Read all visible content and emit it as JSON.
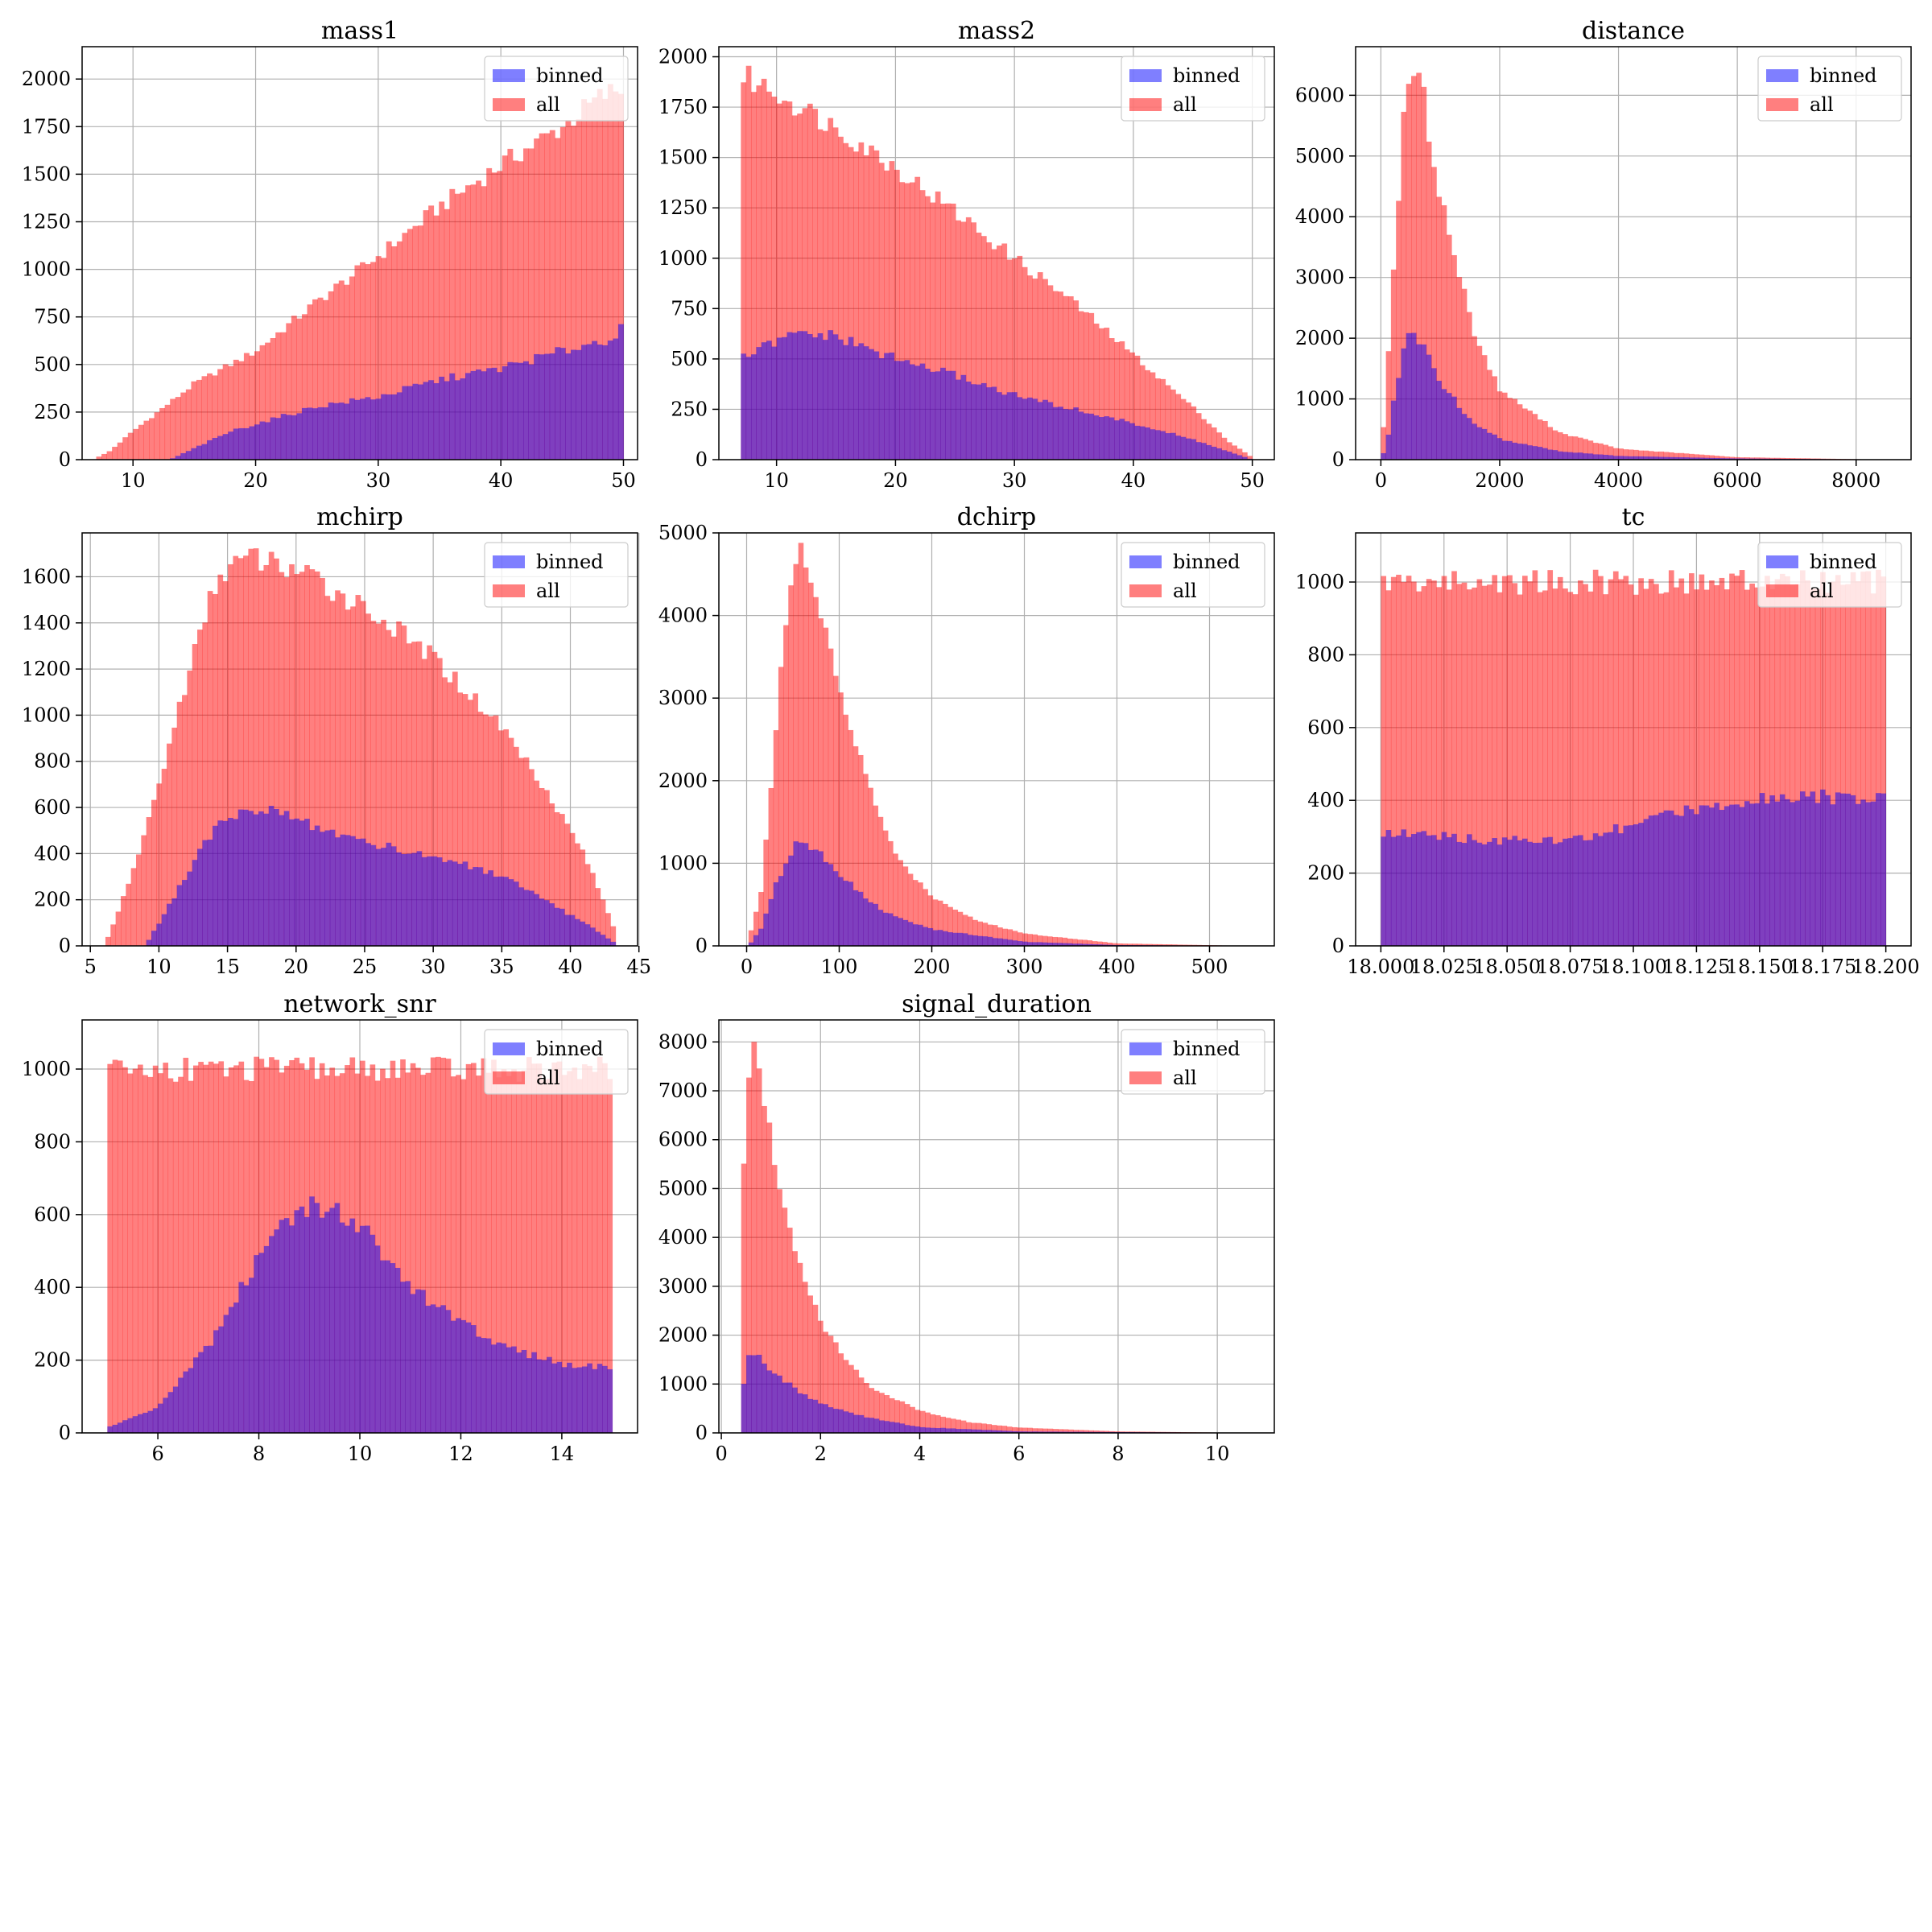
{
  "figure": {
    "colors": {
      "binned": "#0000ff",
      "all": "#ff0000",
      "overlap": "#c03b7c"
    },
    "alpha": 0.5
  },
  "chart_data": [
    {
      "type": "bar",
      "title": "mass1",
      "xlim": [
        5.85,
        51.15
      ],
      "ylim": [
        0,
        2170
      ],
      "xticks": [
        10,
        20,
        30,
        40,
        50
      ],
      "yticks": [
        0,
        250,
        500,
        750,
        1000,
        1250,
        1500,
        1750,
        2000
      ],
      "grid": true,
      "legend_position": "top-right",
      "x_range": [
        7,
        50
      ],
      "series": [
        {
          "name": "binned",
          "profile": [
            [
              7,
              0
            ],
            [
              13,
              0
            ],
            [
              18,
              150
            ],
            [
              25,
              280
            ],
            [
              30,
              330
            ],
            [
              35,
              420
            ],
            [
              40,
              480
            ],
            [
              45,
              570
            ],
            [
              49,
              640
            ],
            [
              50,
              690
            ]
          ]
        },
        {
          "name": "all",
          "profile": [
            [
              7,
              10
            ],
            [
              8,
              40
            ],
            [
              10,
              150
            ],
            [
              15,
              400
            ],
            [
              20,
              570
            ],
            [
              25,
              830
            ],
            [
              30,
              1070
            ],
            [
              35,
              1330
            ],
            [
              40,
              1550
            ],
            [
              45,
              1750
            ],
            [
              48,
              1900
            ],
            [
              50,
              1960
            ]
          ]
        }
      ]
    },
    {
      "type": "bar",
      "title": "mass2",
      "xlim": [
        5.15,
        51.85
      ],
      "ylim": [
        0,
        2050
      ],
      "xticks": [
        10,
        20,
        30,
        40,
        50
      ],
      "yticks": [
        0,
        250,
        500,
        750,
        1000,
        1250,
        1500,
        1750,
        2000
      ],
      "grid": true,
      "legend_position": "top-right",
      "x_range": [
        7,
        50
      ],
      "series": [
        {
          "name": "binned",
          "profile": [
            [
              7,
              500
            ],
            [
              9,
              560
            ],
            [
              12,
              630
            ],
            [
              15,
              610
            ],
            [
              20,
              500
            ],
            [
              25,
              420
            ],
            [
              30,
              320
            ],
            [
              35,
              250
            ],
            [
              40,
              180
            ],
            [
              45,
              100
            ],
            [
              48,
              40
            ],
            [
              50,
              0
            ]
          ]
        },
        {
          "name": "all",
          "profile": [
            [
              7,
              1910
            ],
            [
              10,
              1820
            ],
            [
              15,
              1650
            ],
            [
              20,
              1450
            ],
            [
              25,
              1230
            ],
            [
              30,
              1000
            ],
            [
              35,
              780
            ],
            [
              40,
              520
            ],
            [
              45,
              260
            ],
            [
              48,
              90
            ],
            [
              50,
              10
            ]
          ]
        }
      ]
    },
    {
      "type": "bar",
      "title": "distance",
      "xlim": [
        -425,
        8925
      ],
      "ylim": [
        0,
        6800
      ],
      "xticks": [
        0,
        2000,
        4000,
        6000,
        8000
      ],
      "yticks": [
        0,
        1000,
        2000,
        3000,
        4000,
        5000,
        6000
      ],
      "grid": true,
      "legend_position": "top-right",
      "x_range": [
        0,
        8500
      ],
      "series": [
        {
          "name": "binned",
          "profile": [
            [
              0,
              0
            ],
            [
              100,
              250
            ],
            [
              200,
              900
            ],
            [
              400,
              1900
            ],
            [
              500,
              2050
            ],
            [
              700,
              1850
            ],
            [
              1000,
              1300
            ],
            [
              1500,
              650
            ],
            [
              2000,
              340
            ],
            [
              3000,
              140
            ],
            [
              4000,
              60
            ],
            [
              6000,
              20
            ],
            [
              8500,
              0
            ]
          ]
        },
        {
          "name": "all",
          "profile": [
            [
              0,
              0
            ],
            [
              100,
              1300
            ],
            [
              200,
              3000
            ],
            [
              400,
              5800
            ],
            [
              550,
              6450
            ],
            [
              700,
              6100
            ],
            [
              900,
              4800
            ],
            [
              1200,
              3500
            ],
            [
              1600,
              2000
            ],
            [
              2000,
              1150
            ],
            [
              3000,
              450
            ],
            [
              4000,
              180
            ],
            [
              6000,
              40
            ],
            [
              8500,
              0
            ]
          ]
        }
      ]
    },
    {
      "type": "bar",
      "title": "mchirp",
      "xlim": [
        4.4,
        44.9
      ],
      "ylim": [
        0,
        1790
      ],
      "xticks": [
        5,
        10,
        15,
        20,
        25,
        30,
        35,
        40,
        45
      ],
      "yticks": [
        0,
        200,
        400,
        600,
        800,
        1000,
        1200,
        1400,
        1600
      ],
      "grid": true,
      "legend_position": "top-right",
      "x_range": [
        6.1,
        43.3
      ],
      "series": [
        {
          "name": "binned",
          "profile": [
            [
              6.1,
              0
            ],
            [
              9,
              0
            ],
            [
              11,
              200
            ],
            [
              13,
              420
            ],
            [
              15,
              560
            ],
            [
              17,
              600
            ],
            [
              20,
              550
            ],
            [
              25,
              450
            ],
            [
              30,
              390
            ],
            [
              35,
              300
            ],
            [
              38,
              200
            ],
            [
              41,
              100
            ],
            [
              43.3,
              10
            ]
          ]
        },
        {
          "name": "all",
          "profile": [
            [
              6.1,
              10
            ],
            [
              8,
              300
            ],
            [
              10,
              700
            ],
            [
              12,
              1150
            ],
            [
              14,
              1550
            ],
            [
              15,
              1650
            ],
            [
              17,
              1680
            ],
            [
              20,
              1630
            ],
            [
              25,
              1470
            ],
            [
              30,
              1250
            ],
            [
              35,
              950
            ],
            [
              38,
              700
            ],
            [
              41,
              400
            ],
            [
              43.3,
              60
            ]
          ]
        }
      ]
    },
    {
      "type": "bar",
      "title": "dchirp",
      "xlim": [
        -30,
        570
      ],
      "ylim": [
        0,
        5000
      ],
      "xticks": [
        0,
        100,
        200,
        300,
        400,
        500
      ],
      "yticks": [
        0,
        1000,
        2000,
        3000,
        4000,
        5000
      ],
      "grid": true,
      "legend_position": "top-right",
      "x_range": [
        2,
        540
      ],
      "series": [
        {
          "name": "binned",
          "profile": [
            [
              2,
              0
            ],
            [
              15,
              200
            ],
            [
              30,
              700
            ],
            [
              50,
              1200
            ],
            [
              60,
              1300
            ],
            [
              80,
              1100
            ],
            [
              100,
              850
            ],
            [
              150,
              400
            ],
            [
              200,
              200
            ],
            [
              300,
              50
            ],
            [
              400,
              10
            ],
            [
              540,
              0
            ]
          ]
        },
        {
          "name": "all",
          "profile": [
            [
              2,
              80
            ],
            [
              15,
              600
            ],
            [
              25,
              1800
            ],
            [
              40,
              3800
            ],
            [
              50,
              4600
            ],
            [
              60,
              4750
            ],
            [
              75,
              4200
            ],
            [
              100,
              3100
            ],
            [
              130,
              2000
            ],
            [
              160,
              1100
            ],
            [
              200,
              600
            ],
            [
              250,
              300
            ],
            [
              300,
              150
            ],
            [
              400,
              30
            ],
            [
              540,
              0
            ]
          ]
        }
      ]
    },
    {
      "type": "bar",
      "title": "tc",
      "xlim": [
        17.99,
        18.21
      ],
      "ylim": [
        0,
        1135
      ],
      "xticks": [
        18.0,
        18.025,
        18.05,
        18.075,
        18.1,
        18.125,
        18.15,
        18.175,
        18.2
      ],
      "xticklabels": [
        "18.000",
        "18.025",
        "18.050",
        "18.075",
        "18.100",
        "18.125",
        "18.150",
        "18.175",
        "18.200"
      ],
      "yticks": [
        0,
        200,
        400,
        600,
        800,
        1000
      ],
      "grid": true,
      "legend_position": "top-right",
      "x_range": [
        18.0,
        18.2
      ],
      "series": [
        {
          "name": "binned",
          "profile": [
            [
              18.0,
              310
            ],
            [
              18.05,
              290
            ],
            [
              18.075,
              290
            ],
            [
              18.1,
              330
            ],
            [
              18.125,
              380
            ],
            [
              18.15,
              410
            ],
            [
              18.175,
              410
            ],
            [
              18.2,
              400
            ]
          ]
        },
        {
          "name": "all",
          "profile": [
            [
              18.0,
              1000
            ],
            [
              18.1,
              1000
            ],
            [
              18.2,
              1000
            ]
          ]
        }
      ]
    },
    {
      "type": "bar",
      "title": "network_snr",
      "xlim": [
        4.5,
        15.5
      ],
      "ylim": [
        0,
        1135
      ],
      "xticks": [
        6,
        8,
        10,
        12,
        14
      ],
      "yticks": [
        0,
        200,
        400,
        600,
        800,
        1000
      ],
      "grid": true,
      "legend_position": "top-right",
      "x_range": [
        5,
        15
      ],
      "series": [
        {
          "name": "binned",
          "profile": [
            [
              5,
              15
            ],
            [
              6,
              70
            ],
            [
              7,
              240
            ],
            [
              8,
              480
            ],
            [
              8.5,
              580
            ],
            [
              9,
              620
            ],
            [
              9.5,
              620
            ],
            [
              10,
              570
            ],
            [
              10.5,
              480
            ],
            [
              11,
              400
            ],
            [
              12,
              300
            ],
            [
              13,
              230
            ],
            [
              14,
              190
            ],
            [
              15,
              180
            ]
          ]
        },
        {
          "name": "all",
          "profile": [
            [
              5,
              1000
            ],
            [
              15,
              1000
            ]
          ]
        }
      ]
    },
    {
      "type": "bar",
      "title": "signal_duration",
      "xlim": [
        -0.05,
        11.15
      ],
      "ylim": [
        0,
        8450
      ],
      "xticks": [
        0,
        2,
        4,
        6,
        8,
        10
      ],
      "yticks": [
        0,
        1000,
        2000,
        3000,
        4000,
        5000,
        6000,
        7000,
        8000
      ],
      "grid": true,
      "legend_position": "top-right",
      "x_range": [
        0.4,
        10.7
      ],
      "series": [
        {
          "name": "binned",
          "profile": [
            [
              0.4,
              700
            ],
            [
              0.55,
              1650
            ],
            [
              0.7,
              1650
            ],
            [
              1,
              1300
            ],
            [
              1.5,
              900
            ],
            [
              2,
              600
            ],
            [
              3,
              300
            ],
            [
              4,
              120
            ],
            [
              6,
              30
            ],
            [
              10.7,
              0
            ]
          ]
        },
        {
          "name": "all",
          "profile": [
            [
              0.4,
              4000
            ],
            [
              0.5,
              7000
            ],
            [
              0.65,
              8000
            ],
            [
              0.8,
              7200
            ],
            [
              1,
              6000
            ],
            [
              1.3,
              4500
            ],
            [
              1.6,
              3400
            ],
            [
              2,
              2300
            ],
            [
              2.5,
              1500
            ],
            [
              3,
              950
            ],
            [
              4,
              450
            ],
            [
              5,
              220
            ],
            [
              6,
              110
            ],
            [
              8,
              30
            ],
            [
              10.7,
              0
            ]
          ]
        }
      ]
    }
  ]
}
